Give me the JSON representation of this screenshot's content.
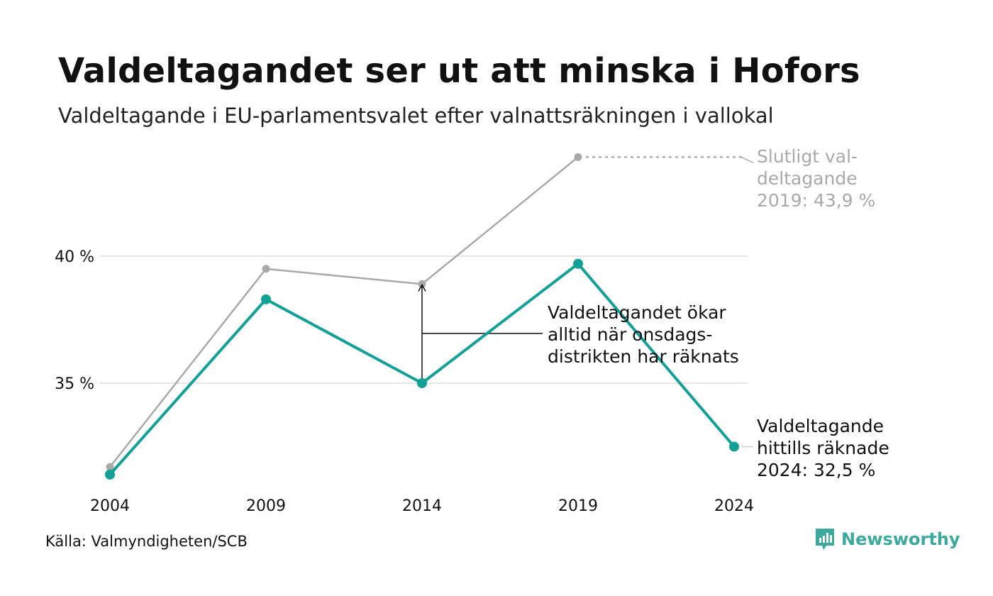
{
  "title": "Valdeltagandet ser ut att minska i Hofors",
  "subtitle": "Valdeltagande i EU-parlamentsvalet efter valnattsräkningen i vallokal",
  "source": "Källa: Valmyndigheten/SCB",
  "brand": {
    "name": "Newsworthy",
    "icon": "newsworthy-logo-icon",
    "color": "#3ba99c"
  },
  "chart_data": {
    "type": "line",
    "x": [
      "2004",
      "2009",
      "2014",
      "2019",
      "2024"
    ],
    "series": [
      {
        "name": "Valdeltagande hittills räknade",
        "values": [
          31.4,
          38.3,
          35.0,
          39.7,
          32.5
        ],
        "color": "#13a096"
      },
      {
        "name": "Slutligt valdeltagande",
        "values": [
          31.7,
          39.5,
          38.9,
          43.9,
          null
        ],
        "color": "#a9a9a9"
      }
    ],
    "yticks": [
      {
        "value": 35,
        "label": "35 %"
      },
      {
        "value": 40,
        "label": "40 %"
      }
    ],
    "ylim": [
      30,
      45
    ],
    "grid": true,
    "annotations": {
      "final_2019": [
        "Slutligt val-",
        "deltagande",
        "2019: 43,9 %"
      ],
      "counted_2024": [
        "Valdeltagande",
        "hittills räknade",
        "2024: 32,5 %"
      ],
      "wednesday": [
        "Valdeltagandet ökar",
        "alltid när onsdags-",
        "distrikten har räknats"
      ]
    }
  }
}
